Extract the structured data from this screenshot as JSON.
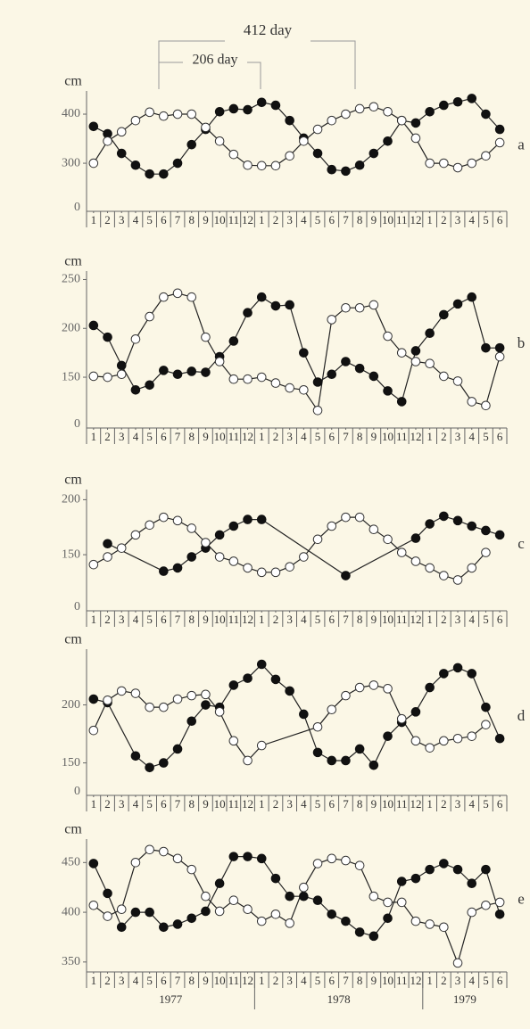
{
  "intervals": [
    {
      "label": "412 day"
    },
    {
      "label": "206 day"
    }
  ],
  "chart_data": [
    {
      "type": "line",
      "panel_label": "a",
      "ylabel": "cm",
      "axis_break_label": "0",
      "ylim": [
        202,
        440
      ],
      "yticks": [
        300,
        400
      ],
      "xlim": [
        0.5,
        30.5
      ],
      "xticks": [
        1,
        2,
        3,
        4,
        5,
        6,
        7,
        8,
        9,
        10,
        11,
        12,
        {
          "value": 13,
          "label": "1"
        },
        {
          "value": 14,
          "label": "2"
        },
        {
          "value": 15,
          "label": "3"
        },
        {
          "value": 16,
          "label": "4"
        },
        {
          "value": 17,
          "label": "5"
        },
        {
          "value": 18,
          "label": "6"
        },
        {
          "value": 19,
          "label": "7"
        },
        {
          "value": 20,
          "label": "8"
        },
        {
          "value": 21,
          "label": "9"
        },
        {
          "value": 22,
          "label": "10"
        },
        {
          "value": 23,
          "label": "11"
        },
        {
          "value": 24,
          "label": "12"
        },
        {
          "value": 25,
          "label": "1"
        },
        {
          "value": 26,
          "label": "2"
        },
        {
          "value": 27,
          "label": "3"
        },
        {
          "value": 28,
          "label": "4"
        },
        {
          "value": 29,
          "label": "5"
        },
        {
          "value": 30,
          "label": "6"
        }
      ],
      "series": [
        {
          "marker": "filled",
          "color": "#111111",
          "x": [
            1,
            2,
            3,
            4,
            5,
            6,
            7,
            8,
            9,
            10,
            11,
            12,
            13,
            14,
            15,
            16,
            17,
            18,
            19,
            20,
            21,
            22,
            23,
            24,
            25,
            26,
            27,
            28,
            29,
            30
          ],
          "values": [
            375,
            360,
            320,
            296,
            278,
            278,
            300,
            338,
            369,
            405,
            411,
            409,
            424,
            418,
            387,
            351,
            320,
            287,
            284,
            296,
            320,
            345,
            387,
            382,
            405,
            418,
            425,
            432,
            400,
            369
          ]
        },
        {
          "marker": "open",
          "color": "#333333",
          "x": [
            1,
            2,
            3,
            4,
            5,
            6,
            7,
            8,
            9,
            10,
            11,
            12,
            13,
            14,
            15,
            16,
            17,
            18,
            19,
            20,
            21,
            22,
            23,
            24,
            25,
            26,
            27,
            28,
            29,
            30
          ],
          "values": [
            300,
            345,
            364,
            387,
            404,
            396,
            400,
            400,
            373,
            345,
            318,
            296,
            295,
            295,
            315,
            345,
            369,
            387,
            400,
            411,
            415,
            405,
            387,
            351,
            300,
            300,
            291,
            300,
            315,
            342
          ]
        }
      ]
    },
    {
      "type": "line",
      "panel_label": "b",
      "ylabel": "cm",
      "axis_break_label": "0",
      "ylim": [
        98,
        255
      ],
      "yticks": [
        150,
        200,
        250
      ],
      "xlim": [
        0.5,
        30.5
      ],
      "xticks": [
        1,
        2,
        3,
        4,
        5,
        6,
        7,
        8,
        9,
        10,
        11,
        12,
        {
          "value": 13,
          "label": "1"
        },
        {
          "value": 14,
          "label": "2"
        },
        {
          "value": 15,
          "label": "3"
        },
        {
          "value": 16,
          "label": "4"
        },
        {
          "value": 17,
          "label": "5"
        },
        {
          "value": 18,
          "label": "6"
        },
        {
          "value": 19,
          "label": "7"
        },
        {
          "value": 20,
          "label": "8"
        },
        {
          "value": 21,
          "label": "9"
        },
        {
          "value": 22,
          "label": "10"
        },
        {
          "value": 23,
          "label": "11"
        },
        {
          "value": 24,
          "label": "12"
        },
        {
          "value": 25,
          "label": "1"
        },
        {
          "value": 26,
          "label": "2"
        },
        {
          "value": 27,
          "label": "3"
        },
        {
          "value": 28,
          "label": "4"
        },
        {
          "value": 29,
          "label": "5"
        },
        {
          "value": 30,
          "label": "6"
        }
      ],
      "series": [
        {
          "marker": "filled",
          "color": "#111111",
          "x": [
            1,
            2,
            3,
            4,
            5,
            6,
            7,
            8,
            9,
            10,
            11,
            12,
            13,
            14,
            15,
            16,
            17,
            18,
            19,
            20,
            21,
            22,
            23,
            24,
            25,
            26,
            27,
            28,
            29,
            30
          ],
          "values": [
            203,
            191,
            162,
            137,
            142,
            157,
            153,
            156,
            155,
            171,
            187,
            216,
            232,
            223,
            224,
            175,
            145,
            153,
            166,
            159,
            151,
            136,
            125,
            177,
            195,
            214,
            225,
            232,
            180,
            180
          ]
        },
        {
          "marker": "open",
          "color": "#333333",
          "x": [
            1,
            2,
            3,
            4,
            5,
            6,
            7,
            8,
            9,
            10,
            11,
            12,
            13,
            14,
            15,
            16,
            17,
            18,
            19,
            20,
            21,
            22,
            23,
            24,
            25,
            26,
            27,
            28,
            29,
            30
          ],
          "values": [
            151,
            150,
            153,
            189,
            212,
            232,
            236,
            232,
            191,
            166,
            148,
            148,
            150,
            144,
            139,
            137,
            116,
            209,
            221,
            221,
            224,
            192,
            175,
            166,
            164,
            151,
            146,
            125,
            121,
            171
          ]
        }
      ]
    },
    {
      "type": "line",
      "panel_label": "c",
      "ylabel": "cm",
      "axis_break_label": "0",
      "ylim": [
        99,
        206
      ],
      "yticks": [
        150,
        200
      ],
      "xlim": [
        0.5,
        30.5
      ],
      "xticks": [
        1,
        2,
        3,
        4,
        5,
        6,
        7,
        8,
        9,
        10,
        11,
        12,
        {
          "value": 13,
          "label": "1"
        },
        {
          "value": 14,
          "label": "2"
        },
        {
          "value": 15,
          "label": "3"
        },
        {
          "value": 16,
          "label": "4"
        },
        {
          "value": 17,
          "label": "5"
        },
        {
          "value": 18,
          "label": "6"
        },
        {
          "value": 19,
          "label": "7"
        },
        {
          "value": 20,
          "label": "8"
        },
        {
          "value": 21,
          "label": "9"
        },
        {
          "value": 22,
          "label": "10"
        },
        {
          "value": 23,
          "label": "11"
        },
        {
          "value": 24,
          "label": "12"
        },
        {
          "value": 25,
          "label": "1"
        },
        {
          "value": 26,
          "label": "2"
        },
        {
          "value": 27,
          "label": "3"
        },
        {
          "value": 28,
          "label": "4"
        },
        {
          "value": 29,
          "label": "5"
        },
        {
          "value": 30,
          "label": "6"
        }
      ],
      "series": [
        {
          "marker": "filled",
          "color": "#111111",
          "x": [
            2,
            6,
            7,
            8,
            9,
            10,
            11,
            12,
            13,
            19,
            24,
            25,
            26,
            27,
            28,
            29,
            30
          ],
          "values": [
            160,
            135,
            138,
            148,
            156,
            168,
            176,
            182,
            182,
            131,
            165,
            178,
            185,
            181,
            176,
            172,
            168
          ]
        },
        {
          "marker": "open",
          "color": "#333333",
          "x": [
            1,
            2,
            3,
            4,
            5,
            6,
            7,
            8,
            9,
            10,
            11,
            12,
            13,
            14,
            15,
            16,
            17,
            18,
            19,
            20,
            21,
            22,
            23,
            24,
            25,
            26,
            27,
            28,
            29
          ],
          "values": [
            141,
            148,
            156,
            168,
            177,
            184,
            181,
            174,
            161,
            148,
            144,
            138,
            134,
            134,
            139,
            148,
            164,
            176,
            184,
            184,
            173,
            164,
            152,
            144,
            138,
            131,
            127,
            138,
            152
          ]
        }
      ]
    },
    {
      "type": "line",
      "panel_label": "d",
      "ylabel": "cm",
      "axis_break_label": "0",
      "ylim": [
        122,
        245
      ],
      "yticks": [
        150,
        200
      ],
      "xlim": [
        0.5,
        30.5
      ],
      "xticks": [
        1,
        2,
        3,
        4,
        5,
        6,
        7,
        8,
        9,
        10,
        11,
        12,
        {
          "value": 13,
          "label": "1"
        },
        {
          "value": 14,
          "label": "2"
        },
        {
          "value": 15,
          "label": "3"
        },
        {
          "value": 16,
          "label": "4"
        },
        {
          "value": 17,
          "label": "5"
        },
        {
          "value": 18,
          "label": "6"
        },
        {
          "value": 19,
          "label": "7"
        },
        {
          "value": 20,
          "label": "8"
        },
        {
          "value": 21,
          "label": "9"
        },
        {
          "value": 22,
          "label": "10"
        },
        {
          "value": 23,
          "label": "11"
        },
        {
          "value": 24,
          "label": "12"
        },
        {
          "value": 25,
          "label": "1"
        },
        {
          "value": 26,
          "label": "2"
        },
        {
          "value": 27,
          "label": "3"
        },
        {
          "value": 28,
          "label": "4"
        },
        {
          "value": 29,
          "label": "5"
        },
        {
          "value": 30,
          "label": "6"
        }
      ],
      "series": [
        {
          "marker": "filled",
          "color": "#111111",
          "x": [
            1,
            2,
            4,
            5,
            6,
            7,
            8,
            9,
            10,
            11,
            12,
            13,
            14,
            15,
            16,
            17,
            18,
            19,
            20,
            21,
            22,
            23,
            24,
            25,
            26,
            27,
            28,
            29,
            30
          ],
          "values": [
            205,
            202,
            156,
            146,
            150,
            162,
            186,
            200,
            198,
            217,
            223,
            235,
            222,
            212,
            192,
            159,
            152,
            152,
            162,
            148,
            173,
            185,
            194,
            215,
            227,
            232,
            227,
            198,
            171
          ]
        },
        {
          "marker": "open",
          "color": "#333333",
          "x": [
            1,
            2,
            3,
            4,
            5,
            6,
            7,
            8,
            9,
            10,
            11,
            12,
            13,
            17,
            18,
            19,
            20,
            21,
            22,
            23,
            24,
            25,
            26,
            27,
            28,
            29
          ],
          "values": [
            178,
            204,
            212,
            210,
            198,
            198,
            205,
            208,
            209,
            194,
            169,
            152,
            165,
            181,
            196,
            208,
            215,
            217,
            214,
            188,
            169,
            163,
            169,
            171,
            173,
            183
          ]
        }
      ]
    },
    {
      "type": "line",
      "panel_label": "e",
      "ylabel": "cm",
      "ylim": [
        340,
        470
      ],
      "yticks": [
        350,
        400,
        450
      ],
      "xlim": [
        0.5,
        30.5
      ],
      "xticks": [
        1,
        2,
        3,
        4,
        5,
        6,
        7,
        8,
        9,
        10,
        11,
        12,
        {
          "value": 13,
          "label": "1"
        },
        {
          "value": 14,
          "label": "2"
        },
        {
          "value": 15,
          "label": "3"
        },
        {
          "value": 16,
          "label": "4"
        },
        {
          "value": 17,
          "label": "5"
        },
        {
          "value": 18,
          "label": "6"
        },
        {
          "value": 19,
          "label": "7"
        },
        {
          "value": 20,
          "label": "8"
        },
        {
          "value": 21,
          "label": "9"
        },
        {
          "value": 22,
          "label": "10"
        },
        {
          "value": 23,
          "label": "11"
        },
        {
          "value": 24,
          "label": "12"
        },
        {
          "value": 25,
          "label": "1"
        },
        {
          "value": 26,
          "label": "2"
        },
        {
          "value": 27,
          "label": "3"
        },
        {
          "value": 28,
          "label": "4"
        },
        {
          "value": 29,
          "label": "5"
        },
        {
          "value": 30,
          "label": "6"
        }
      ],
      "year_labels": [
        "1977",
        "1978",
        "1979"
      ],
      "series": [
        {
          "marker": "filled",
          "color": "#111111",
          "x": [
            1,
            2,
            3,
            4,
            5,
            6,
            7,
            8,
            9,
            10,
            11,
            12,
            13,
            14,
            15,
            16,
            17,
            18,
            19,
            20,
            21,
            22,
            23,
            24,
            25,
            26,
            27,
            28,
            29,
            30
          ],
          "values": [
            449,
            419,
            385,
            400,
            400,
            385,
            388,
            394,
            401,
            429,
            456,
            456,
            454,
            434,
            416,
            416,
            412,
            398,
            391,
            380,
            376,
            394,
            431,
            434,
            443,
            449,
            443,
            429,
            443,
            398
          ]
        },
        {
          "marker": "open",
          "color": "#333333",
          "x": [
            1,
            2,
            3,
            4,
            5,
            6,
            7,
            8,
            9,
            10,
            11,
            12,
            13,
            14,
            15,
            16,
            17,
            18,
            19,
            20,
            21,
            22,
            23,
            24,
            25,
            26,
            27,
            28,
            29,
            30
          ],
          "values": [
            407,
            396,
            403,
            450,
            463,
            461,
            454,
            443,
            416,
            401,
            412,
            403,
            391,
            398,
            389,
            425,
            449,
            454,
            452,
            447,
            416,
            410,
            410,
            391,
            388,
            385,
            349,
            400,
            407,
            410
          ]
        }
      ]
    }
  ]
}
